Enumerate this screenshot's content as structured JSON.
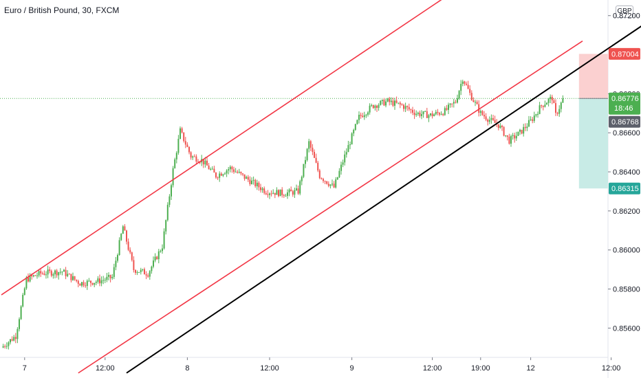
{
  "header": {
    "title": "Euro / British Pound, 30, FXCM"
  },
  "currency": "GBP",
  "colors": {
    "up": "#26a69a",
    "up_bar": "#4caf50",
    "down": "#ef5350",
    "channel": "#f23645",
    "trend": "#000000",
    "current_line": "#4caf50",
    "stop_zone": "#fbd0d0",
    "target_zone": "#c8ebe6",
    "axis_text": "#131722"
  },
  "chart_data": {
    "type": "candlestick",
    "symbol": "Euro / British Pound",
    "timeframe": "30",
    "source": "FXCM",
    "ylim": [
      0.8545,
      0.8728
    ],
    "y_ticks": [
      "0.87200",
      "0.86800",
      "0.86600",
      "0.86400",
      "0.86200",
      "0.86000",
      "0.85800",
      "0.85600"
    ],
    "x_ticks": [
      "7",
      "12:00",
      "8",
      "12:00",
      "9",
      "12:00",
      "19:00",
      "12",
      "12:00"
    ],
    "price_labels": {
      "stop": "0.87004",
      "last": "0.86776",
      "countdown": "18:46",
      "bid": "0.86768",
      "target": "0.86315"
    },
    "position": {
      "entry": 0.86776,
      "stop": 0.87004,
      "target": 0.86315
    },
    "anchors": [
      [
        0,
        0.855
      ],
      [
        8,
        0.8556
      ],
      [
        14,
        0.8585
      ],
      [
        22,
        0.8588
      ],
      [
        34,
        0.8589
      ],
      [
        44,
        0.8583
      ],
      [
        54,
        0.8584
      ],
      [
        62,
        0.8586
      ],
      [
        68,
        0.8612
      ],
      [
        74,
        0.859
      ],
      [
        82,
        0.8588
      ],
      [
        90,
        0.8602
      ],
      [
        96,
        0.8641
      ],
      [
        100,
        0.8661
      ],
      [
        106,
        0.8648
      ],
      [
        112,
        0.8646
      ],
      [
        120,
        0.8638
      ],
      [
        128,
        0.8642
      ],
      [
        138,
        0.8636
      ],
      [
        148,
        0.863
      ],
      [
        158,
        0.8629
      ],
      [
        166,
        0.863
      ],
      [
        172,
        0.8655
      ],
      [
        178,
        0.8638
      ],
      [
        186,
        0.8632
      ],
      [
        192,
        0.8648
      ],
      [
        200,
        0.8668
      ],
      [
        208,
        0.8674
      ],
      [
        216,
        0.8676
      ],
      [
        224,
        0.8674
      ],
      [
        232,
        0.867
      ],
      [
        240,
        0.8669
      ],
      [
        248,
        0.8671
      ],
      [
        254,
        0.8676
      ],
      [
        258,
        0.8688
      ],
      [
        262,
        0.868
      ],
      [
        268,
        0.867
      ],
      [
        274,
        0.8666
      ],
      [
        278,
        0.8664
      ],
      [
        284,
        0.8656
      ],
      [
        290,
        0.866
      ],
      [
        296,
        0.8666
      ],
      [
        302,
        0.8674
      ],
      [
        308,
        0.8678
      ],
      [
        310,
        0.8669
      ],
      [
        314,
        0.8677
      ]
    ],
    "channel_upper": [
      [
        0,
        0.8577
      ],
      [
        280,
        0.8749
      ]
    ],
    "channel_lower": [
      [
        43,
        0.8537
      ],
      [
        325,
        0.8707
      ]
    ],
    "trend_line": [
      [
        70,
        0.8537
      ],
      [
        365,
        0.8719
      ]
    ],
    "total_bars": 358
  }
}
